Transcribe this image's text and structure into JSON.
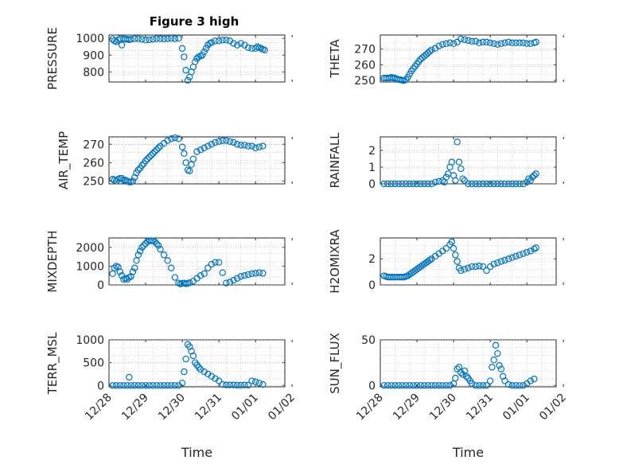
{
  "figure": {
    "title": "Figure 3 high"
  },
  "colors": {
    "marker": "#0072BD",
    "axis": "#262626",
    "grid": "#d4d4d4"
  },
  "chart_data": [
    {
      "type": "scatter",
      "ylabel": "PRESSURE",
      "xlabel": "",
      "xlim": [
        0,
        4.8
      ],
      "ylim": [
        740,
        1020
      ],
      "yticks": [
        800,
        900,
        1000
      ],
      "xticks": [
        "12/28",
        "12/29",
        "12/30",
        "12/31",
        "01/01",
        "01/02"
      ],
      "show_xticklabels": false,
      "series": [
        {
          "x": [
            0.1,
            0.15,
            0.2,
            0.25,
            0.3,
            0.35,
            0.4,
            0.45,
            0.5,
            0.55,
            0.6,
            0.7,
            0.8,
            0.9,
            1.0,
            1.1,
            1.2,
            1.3,
            1.4,
            1.5,
            1.6,
            1.7,
            1.8,
            1.9,
            2.0,
            2.05,
            2.1,
            2.15,
            2.2,
            2.25,
            2.3,
            2.35,
            2.4,
            2.45,
            2.5,
            2.55,
            2.6,
            2.65,
            2.7,
            2.75,
            2.8,
            2.9,
            3.0,
            3.1,
            3.2,
            3.3,
            3.4,
            3.5,
            3.6,
            3.7,
            3.8,
            3.9,
            4.0,
            4.05,
            4.1,
            4.15,
            4.2,
            4.25
          ],
          "y": [
            995,
            985,
            980,
            990,
            998,
            960,
            998,
            995,
            995,
            992,
            995,
            998,
            998,
            995,
            990,
            992,
            995,
            998,
            998,
            997,
            998,
            1000,
            998,
            1000,
            940,
            890,
            810,
            750,
            770,
            800,
            830,
            860,
            880,
            890,
            895,
            900,
            920,
            940,
            960,
            970,
            975,
            985,
            985,
            990,
            990,
            985,
            970,
            960,
            970,
            960,
            945,
            940,
            940,
            950,
            945,
            940,
            935,
            930
          ]
        }
      ]
    },
    {
      "type": "scatter",
      "ylabel": "THETA",
      "xlabel": "",
      "xlim": [
        0,
        4.8
      ],
      "ylim": [
        249,
        279
      ],
      "yticks": [
        250,
        260,
        270
      ],
      "xticks": [
        "12/28",
        "12/29",
        "12/30",
        "12/31",
        "01/01",
        "01/02"
      ],
      "show_xticklabels": false,
      "series": [
        {
          "x": [
            0.1,
            0.15,
            0.2,
            0.25,
            0.3,
            0.35,
            0.4,
            0.45,
            0.5,
            0.55,
            0.6,
            0.65,
            0.7,
            0.75,
            0.8,
            0.85,
            0.9,
            0.95,
            1.0,
            1.05,
            1.1,
            1.15,
            1.2,
            1.25,
            1.3,
            1.35,
            1.4,
            1.5,
            1.6,
            1.7,
            1.8,
            1.9,
            2.0,
            2.1,
            2.2,
            2.3,
            2.4,
            2.5,
            2.6,
            2.7,
            2.8,
            2.9,
            3.0,
            3.1,
            3.2,
            3.3,
            3.4,
            3.5,
            3.6,
            3.7,
            3.8,
            3.9,
            4.0,
            4.1,
            4.2,
            4.25
          ],
          "y": [
            251.5,
            251.5,
            251.5,
            251.5,
            252,
            251.5,
            251.5,
            251,
            250.5,
            250.5,
            250,
            250,
            250.5,
            252,
            254,
            256,
            257.5,
            259,
            260.5,
            262,
            263.5,
            264.5,
            265.5,
            266.5,
            267.5,
            268.5,
            269.5,
            270.5,
            272,
            273,
            273.5,
            274,
            273.5,
            274.5,
            276.5,
            276,
            275.5,
            275,
            275,
            274,
            274.5,
            274.5,
            274,
            273.5,
            273,
            273.5,
            274,
            274.5,
            274,
            274,
            274,
            274,
            273.5,
            273.5,
            274,
            274.5
          ]
        }
      ]
    },
    {
      "type": "scatter",
      "ylabel": "AIR_TEMP",
      "xlabel": "",
      "xlim": [
        0,
        4.8
      ],
      "ylim": [
        248.5,
        274
      ],
      "yticks": [
        250,
        260,
        270
      ],
      "xticks": [
        "12/28",
        "12/29",
        "12/30",
        "12/31",
        "01/01",
        "01/02"
      ],
      "show_xticklabels": false,
      "series": [
        {
          "x": [
            0.1,
            0.15,
            0.2,
            0.25,
            0.3,
            0.35,
            0.4,
            0.45,
            0.5,
            0.55,
            0.6,
            0.65,
            0.7,
            0.75,
            0.8,
            0.85,
            0.9,
            0.95,
            1.0,
            1.05,
            1.1,
            1.15,
            1.2,
            1.25,
            1.3,
            1.35,
            1.4,
            1.5,
            1.6,
            1.7,
            1.8,
            1.9,
            2.0,
            2.05,
            2.1,
            2.15,
            2.2,
            2.25,
            2.3,
            2.4,
            2.5,
            2.6,
            2.7,
            2.8,
            2.9,
            3.0,
            3.1,
            3.2,
            3.3,
            3.4,
            3.5,
            3.6,
            3.7,
            3.8,
            3.9,
            4.0,
            4.1,
            4.2
          ],
          "y": [
            251,
            250.5,
            250,
            251,
            251.5,
            251.5,
            250.5,
            250.5,
            250,
            249.5,
            249.5,
            250,
            252,
            254.5,
            256,
            257,
            258.5,
            259.5,
            261,
            262,
            263,
            264,
            265,
            266,
            267,
            268,
            269,
            270.5,
            272,
            273,
            273.5,
            273,
            268.5,
            265,
            260,
            256,
            255.5,
            259,
            262,
            266,
            267,
            268,
            269,
            270,
            271,
            271.5,
            272,
            272,
            271.5,
            271,
            270,
            269.5,
            269.5,
            269,
            269,
            268,
            268.5,
            269
          ]
        }
      ]
    },
    {
      "type": "scatter",
      "ylabel": "RAINFALL",
      "xlabel": "",
      "xlim": [
        0,
        4.8
      ],
      "ylim": [
        0,
        2.8
      ],
      "yticks": [
        0,
        1,
        2
      ],
      "xticks": [
        "12/28",
        "12/29",
        "12/30",
        "12/31",
        "01/01",
        "01/02"
      ],
      "show_xticklabels": false,
      "series": [
        {
          "x": [
            0.1,
            0.2,
            0.3,
            0.4,
            0.5,
            0.6,
            0.7,
            0.8,
            0.9,
            1.0,
            1.1,
            1.2,
            1.3,
            1.4,
            1.5,
            1.6,
            1.7,
            1.75,
            1.8,
            1.85,
            1.9,
            1.95,
            2.0,
            2.05,
            2.1,
            2.15,
            2.2,
            2.25,
            2.3,
            2.4,
            2.5,
            2.6,
            2.7,
            2.8,
            2.9,
            3.0,
            3.1,
            3.2,
            3.3,
            3.4,
            3.5,
            3.6,
            3.7,
            3.8,
            3.9,
            4.0,
            4.05,
            4.1,
            4.15,
            4.2,
            4.25
          ],
          "y": [
            0,
            0,
            0,
            0,
            0,
            0,
            0,
            0,
            0,
            0,
            0,
            0,
            0,
            0,
            0.1,
            0.15,
            0.2,
            0.1,
            0.4,
            0.6,
            1.0,
            1.3,
            0.5,
            0.2,
            2.5,
            1.3,
            0.9,
            0.3,
            0.2,
            0,
            0,
            0,
            0,
            0,
            0,
            0,
            0,
            0,
            0,
            0,
            0,
            0,
            0,
            0,
            0,
            0.1,
            0.3,
            0.2,
            0.4,
            0.5,
            0.6
          ]
        }
      ]
    },
    {
      "type": "scatter",
      "ylabel": "MIXDEPTH",
      "xlabel": "",
      "xlim": [
        0,
        4.8
      ],
      "ylim": [
        0,
        2500
      ],
      "yticks": [
        0,
        1000,
        2000
      ],
      "xticks": [
        "12/28",
        "12/29",
        "12/30",
        "12/31",
        "01/01",
        "01/02"
      ],
      "show_xticklabels": false,
      "series": [
        {
          "x": [
            0.1,
            0.15,
            0.2,
            0.25,
            0.3,
            0.35,
            0.4,
            0.45,
            0.5,
            0.55,
            0.6,
            0.65,
            0.7,
            0.75,
            0.8,
            0.85,
            0.9,
            0.95,
            1.0,
            1.05,
            1.1,
            1.15,
            1.2,
            1.25,
            1.3,
            1.35,
            1.4,
            1.5,
            1.6,
            1.7,
            1.8,
            1.9,
            1.95,
            2.0,
            2.05,
            2.1,
            2.15,
            2.2,
            2.3,
            2.4,
            2.5,
            2.6,
            2.7,
            2.8,
            2.9,
            3.0,
            3.1,
            3.2,
            3.3,
            3.4,
            3.5,
            3.6,
            3.7,
            3.8,
            3.9,
            4.0,
            4.1,
            4.2
          ],
          "y": [
            600,
            900,
            1000,
            950,
            700,
            500,
            300,
            350,
            300,
            400,
            450,
            700,
            900,
            1300,
            1600,
            1800,
            2000,
            2100,
            2200,
            2300,
            2350,
            2350,
            2350,
            2300,
            2200,
            2100,
            1900,
            1600,
            1300,
            900,
            400,
            100,
            50,
            80,
            100,
            60,
            80,
            120,
            200,
            350,
            500,
            600,
            900,
            1100,
            1200,
            1200,
            650,
            100,
            150,
            250,
            350,
            450,
            500,
            550,
            600,
            620,
            650,
            620
          ]
        }
      ]
    },
    {
      "type": "scatter",
      "ylabel": "H2OMIXRA",
      "xlabel": "",
      "xlim": [
        0,
        4.8
      ],
      "ylim": [
        0,
        3.6
      ],
      "yticks": [
        0,
        2
      ],
      "xticks": [
        "12/28",
        "12/29",
        "12/30",
        "12/31",
        "01/01",
        "01/02"
      ],
      "show_xticklabels": false,
      "series": [
        {
          "x": [
            0.1,
            0.15,
            0.2,
            0.25,
            0.3,
            0.35,
            0.4,
            0.45,
            0.5,
            0.55,
            0.6,
            0.65,
            0.7,
            0.75,
            0.8,
            0.85,
            0.9,
            0.95,
            1.0,
            1.05,
            1.1,
            1.15,
            1.2,
            1.25,
            1.3,
            1.35,
            1.4,
            1.5,
            1.6,
            1.7,
            1.8,
            1.9,
            1.95,
            2.0,
            2.05,
            2.1,
            2.15,
            2.2,
            2.3,
            2.4,
            2.5,
            2.6,
            2.7,
            2.8,
            2.9,
            3.0,
            3.1,
            3.2,
            3.3,
            3.4,
            3.5,
            3.6,
            3.7,
            3.8,
            3.9,
            4.0,
            4.1,
            4.2,
            4.25
          ],
          "y": [
            0.7,
            0.65,
            0.6,
            0.6,
            0.6,
            0.6,
            0.6,
            0.6,
            0.6,
            0.6,
            0.6,
            0.6,
            0.65,
            0.7,
            0.8,
            0.9,
            1.0,
            1.1,
            1.2,
            1.3,
            1.4,
            1.5,
            1.6,
            1.7,
            1.8,
            1.9,
            2.0,
            2.2,
            2.4,
            2.6,
            2.8,
            3.1,
            3.3,
            2.8,
            2.3,
            1.8,
            1.3,
            1.1,
            1.2,
            1.3,
            1.4,
            1.4,
            1.45,
            1.4,
            1.1,
            1.4,
            1.6,
            1.7,
            1.8,
            1.9,
            2.0,
            2.1,
            2.2,
            2.3,
            2.4,
            2.5,
            2.6,
            2.75,
            2.85
          ]
        }
      ]
    },
    {
      "type": "scatter",
      "ylabel": "TERR_MSL",
      "xlabel": "Time",
      "xlim": [
        0,
        4.8
      ],
      "ylim": [
        -30,
        1000
      ],
      "yticks": [
        0,
        500,
        1000
      ],
      "xticks": [
        "12/28",
        "12/29",
        "12/30",
        "12/31",
        "01/01",
        "01/02"
      ],
      "show_xticklabels": true,
      "series": [
        {
          "x": [
            0.1,
            0.2,
            0.3,
            0.4,
            0.5,
            0.55,
            0.6,
            0.7,
            0.8,
            0.9,
            1.0,
            1.1,
            1.2,
            1.3,
            1.4,
            1.5,
            1.6,
            1.7,
            1.8,
            1.9,
            2.0,
            2.05,
            2.1,
            2.15,
            2.2,
            2.25,
            2.3,
            2.35,
            2.4,
            2.45,
            2.5,
            2.6,
            2.7,
            2.8,
            2.9,
            3.0,
            3.1,
            3.2,
            3.3,
            3.4,
            3.5,
            3.6,
            3.7,
            3.8,
            3.9,
            4.0,
            4.1,
            4.2
          ],
          "y": [
            0,
            0,
            0,
            0,
            0,
            180,
            0,
            0,
            0,
            0,
            0,
            0,
            0,
            0,
            0,
            0,
            0,
            0,
            0,
            0,
            50,
            300,
            580,
            900,
            850,
            750,
            650,
            500,
            450,
            400,
            350,
            300,
            250,
            200,
            150,
            100,
            20,
            10,
            10,
            10,
            5,
            5,
            10,
            5,
            100,
            80,
            50,
            20
          ]
        }
      ]
    },
    {
      "type": "scatter",
      "ylabel": "SUN_FLUX",
      "xlabel": "Time",
      "xlim": [
        0,
        4.8
      ],
      "ylim": [
        -1.5,
        50
      ],
      "yticks": [
        0,
        50
      ],
      "xticks": [
        "12/28",
        "12/29",
        "12/30",
        "12/31",
        "01/01",
        "01/02"
      ],
      "show_xticklabels": true,
      "series": [
        {
          "x": [
            0.1,
            0.2,
            0.3,
            0.4,
            0.5,
            0.6,
            0.7,
            0.8,
            0.9,
            1.0,
            1.1,
            1.2,
            1.3,
            1.4,
            1.5,
            1.6,
            1.7,
            1.8,
            1.9,
            2.0,
            2.05,
            2.1,
            2.15,
            2.2,
            2.25,
            2.3,
            2.35,
            2.4,
            2.45,
            2.5,
            2.6,
            2.7,
            2.8,
            2.9,
            3.0,
            3.05,
            3.1,
            3.15,
            3.2,
            3.25,
            3.3,
            3.35,
            3.4,
            3.5,
            3.6,
            3.7,
            3.8,
            3.9,
            4.0,
            4.1,
            4.2
          ],
          "y": [
            0,
            0,
            0,
            0,
            0,
            0,
            0,
            0,
            0,
            0,
            0,
            0,
            0,
            0,
            0,
            0,
            0,
            0,
            0,
            2,
            8,
            18,
            20,
            14,
            12,
            16,
            10,
            8,
            5,
            2,
            0,
            0,
            0,
            0,
            5,
            20,
            28,
            44,
            35,
            22,
            18,
            10,
            5,
            1,
            0,
            0,
            0,
            0,
            2,
            5,
            7
          ]
        }
      ]
    }
  ]
}
